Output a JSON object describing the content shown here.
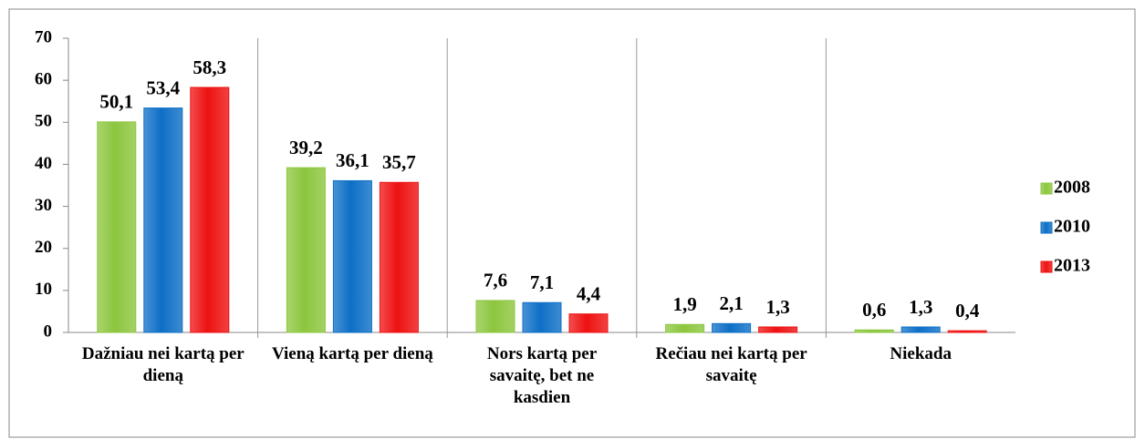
{
  "chart_data": {
    "type": "bar",
    "categories": [
      "Dažniau nei kartą per dieną",
      "Vieną kartą per dieną",
      "Nors kartą per savaitę, bet ne kasdien",
      "Rečiau nei kartą per savaitę",
      "Niekada"
    ],
    "series": [
      {
        "name": "2008",
        "color": "#8cc63e",
        "values": [
          50.1,
          39.2,
          7.6,
          1.9,
          0.6
        ],
        "value_labels": [
          "50,1",
          "39,2",
          "7,6",
          "1,9",
          "0,6"
        ]
      },
      {
        "name": "2010",
        "color": "#0d6fc6",
        "values": [
          53.4,
          36.1,
          7.1,
          2.1,
          1.3
        ],
        "value_labels": [
          "53,4",
          "36,1",
          "7,1",
          "2,1",
          "1,3"
        ]
      },
      {
        "name": "2013",
        "color": "#ee1111",
        "values": [
          58.3,
          35.7,
          4.4,
          1.3,
          0.4
        ],
        "value_labels": [
          "58,3",
          "35,7",
          "4,4",
          "1,3",
          "0,4"
        ]
      }
    ],
    "ylim": [
      0,
      70
    ],
    "yticks": [
      0,
      10,
      20,
      30,
      40,
      50,
      60,
      70
    ],
    "legend": "right"
  }
}
